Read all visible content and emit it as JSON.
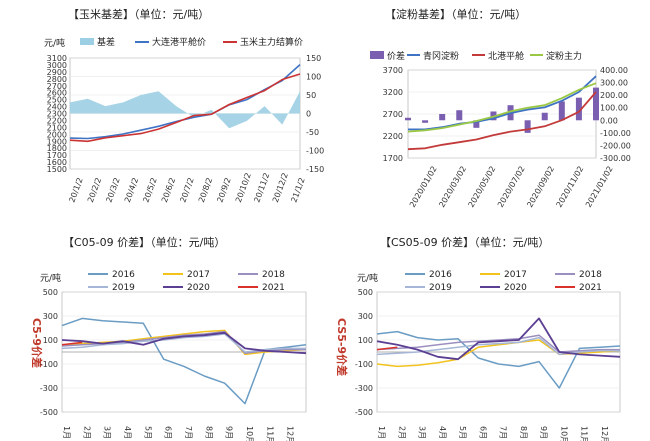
{
  "chart_data": [
    {
      "type": "line",
      "title": "【玉米基差】（单位：元/吨）",
      "ylabel_left": "元/吨",
      "legend": [
        "基差",
        "大连港平舱价",
        "玉米主力结算价"
      ],
      "y_left_ticks": [
        "3100",
        "3000",
        "2900",
        "2800",
        "2700",
        "2600",
        "2500",
        "2400",
        "2300",
        "2200",
        "2100",
        "2000",
        "1900",
        "1800",
        "1700",
        "1600",
        "1500"
      ],
      "y_right_ticks": [
        "150",
        "100",
        "50",
        "0",
        "-50",
        "-100",
        "-150"
      ],
      "ylim_left": [
        1500,
        3100
      ],
      "ylim_right": [
        -150,
        150
      ],
      "x_labels": [
        "20/1/2",
        "20/2/2",
        "20/3/2",
        "20/4/2",
        "20/5/2",
        "20/6/2",
        "20/7/2",
        "20/8/2",
        "20/9/2",
        "20/10/2",
        "20/11/2",
        "20/12/2",
        "21/1/2"
      ],
      "colors": {
        "basis": "#9ccfe3",
        "port": "#3f73c4",
        "futures": "#cc3333"
      },
      "series": [
        {
          "name": "大连港平舱价",
          "values": [
            1945,
            1940,
            1965,
            2005,
            2060,
            2115,
            2185,
            2245,
            2290,
            2425,
            2500,
            2645,
            2775,
            3005
          ]
        },
        {
          "name": "玉米主力结算价",
          "values": [
            1915,
            1900,
            1950,
            1980,
            2010,
            2075,
            2170,
            2270,
            2290,
            2430,
            2530,
            2630,
            2790,
            2870
          ]
        },
        {
          "name": "基差",
          "values": [
            30,
            40,
            20,
            30,
            50,
            60,
            20,
            -10,
            10,
            -40,
            -20,
            20,
            -30,
            60
          ]
        }
      ]
    },
    {
      "type": "line",
      "title": "【淀粉基差】（单位：元/吨）",
      "legend": [
        "价差",
        "青冈淀粉",
        "北港平舱",
        "淀粉主力"
      ],
      "y_left_ticks": [
        "3700",
        "3200",
        "2700",
        "2200",
        "1700"
      ],
      "y_right_ticks": [
        "400.00",
        "300.00",
        "200.00",
        "100.00",
        "0.00",
        "-100.00",
        "-200.00",
        "-300.00"
      ],
      "ylim_left": [
        1700,
        3700
      ],
      "ylim_right": [
        -300,
        400
      ],
      "x_labels": [
        "2020/01/02",
        "2020/03/02",
        "2020/05/02",
        "2020/07/02",
        "2020/09/02",
        "2020/11/02",
        "2021/01/02"
      ],
      "colors": {
        "spread": "#7a5fb0",
        "qinggang": "#3f73c4",
        "beigang": "#c33a3a",
        "main": "#9bc844"
      },
      "series": [
        {
          "name": "青冈淀粉",
          "values": [
            2350,
            2350,
            2400,
            2480,
            2520,
            2600,
            2720,
            2800,
            2850,
            3000,
            3200,
            3560
          ]
        },
        {
          "name": "北港平舱",
          "values": [
            1900,
            1920,
            2000,
            2060,
            2120,
            2220,
            2300,
            2350,
            2420,
            2560,
            2750,
            3200
          ]
        },
        {
          "name": "淀粉主力",
          "values": [
            2300,
            2330,
            2380,
            2460,
            2540,
            2640,
            2760,
            2840,
            2900,
            3060,
            3250,
            3400
          ]
        },
        {
          "name": "价差",
          "values": [
            20,
            -20,
            50,
            80,
            -60,
            70,
            120,
            -100,
            60,
            150,
            180,
            260
          ]
        }
      ]
    },
    {
      "type": "line",
      "title": "【C05-09 价差】（单位：元/吨）",
      "ylabel": "元/吨",
      "side_label": "C5-9价差",
      "y_ticks": [
        "500",
        "300",
        "100",
        "-100",
        "-300",
        "-500"
      ],
      "ylim": [
        -500,
        500
      ],
      "x_labels": [
        "1月",
        "2月",
        "3月",
        "4月",
        "5月",
        "6月",
        "7月",
        "8月",
        "9月",
        "10月",
        "11月",
        "12月"
      ],
      "legend": [
        "2016",
        "2017",
        "2018",
        "2019",
        "2020",
        "2021"
      ],
      "colors": {
        "2016": "#6a9cc4",
        "2017": "#f2c21d",
        "2018": "#9b8fbf",
        "2019": "#a6b6d6",
        "2020": "#5b3f93",
        "2021": "#d9312b"
      },
      "series": [
        {
          "name": "2016",
          "values": [
            220,
            280,
            260,
            250,
            240,
            -60,
            -120,
            -200,
            -260,
            -430,
            20,
            40,
            60
          ]
        },
        {
          "name": "2017",
          "values": [
            60,
            70,
            80,
            90,
            110,
            130,
            150,
            170,
            180,
            -20,
            0,
            10,
            20
          ]
        },
        {
          "name": "2018",
          "values": [
            50,
            60,
            70,
            80,
            100,
            120,
            140,
            150,
            170,
            -10,
            10,
            20,
            20
          ]
        },
        {
          "name": "2019",
          "values": [
            30,
            40,
            60,
            70,
            90,
            100,
            120,
            130,
            150,
            0,
            20,
            30,
            30
          ]
        },
        {
          "name": "2020",
          "values": [
            100,
            90,
            70,
            90,
            60,
            110,
            130,
            140,
            160,
            30,
            10,
            0,
            -10
          ]
        },
        {
          "name": "2021",
          "values": [
            60,
            80
          ]
        }
      ]
    },
    {
      "type": "line",
      "title": "【CS05-09 价差】（单位：元/吨）",
      "ylabel": "元/吨",
      "side_label": "CS5-9价差",
      "y_ticks": [
        "500",
        "300",
        "100",
        "-100",
        "-300",
        "-500"
      ],
      "ylim": [
        -500,
        500
      ],
      "x_labels": [
        "1月",
        "2月",
        "3月",
        "4月",
        "5月",
        "6月",
        "7月",
        "8月",
        "9月",
        "10月",
        "11月",
        "12月"
      ],
      "legend": [
        "2016",
        "2017",
        "2018",
        "2019",
        "2020",
        "2021"
      ],
      "colors": {
        "2016": "#6a9cc4",
        "2017": "#f2c21d",
        "2018": "#9b8fbf",
        "2019": "#a6b6d6",
        "2020": "#5b3f93",
        "2021": "#d9312b"
      },
      "series": [
        {
          "name": "2016",
          "values": [
            150,
            170,
            120,
            100,
            110,
            -50,
            -100,
            -120,
            -80,
            -300,
            30,
            40,
            50
          ]
        },
        {
          "name": "2017",
          "values": [
            -100,
            -120,
            -110,
            -90,
            -60,
            40,
            60,
            80,
            100,
            -20,
            -10,
            0,
            10
          ]
        },
        {
          "name": "2018",
          "values": [
            20,
            30,
            40,
            60,
            80,
            90,
            100,
            110,
            140,
            0,
            10,
            20,
            20
          ]
        },
        {
          "name": "2019",
          "values": [
            -20,
            -10,
            0,
            20,
            40,
            60,
            70,
            80,
            120,
            -20,
            0,
            10,
            10
          ]
        },
        {
          "name": "2020",
          "values": [
            90,
            60,
            20,
            -40,
            -60,
            80,
            90,
            100,
            280,
            0,
            -20,
            -30,
            -40
          ]
        },
        {
          "name": "2021",
          "values": [
            20,
            40
          ]
        }
      ]
    }
  ]
}
